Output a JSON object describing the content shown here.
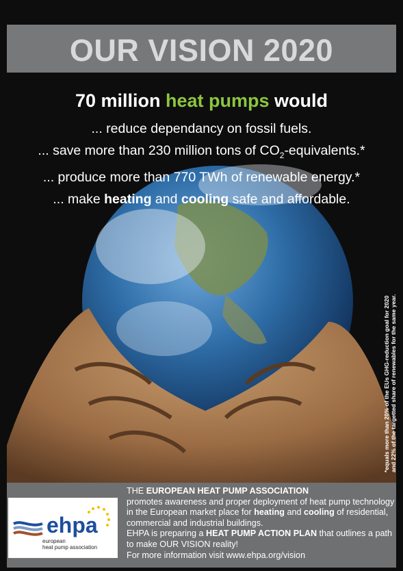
{
  "title": "OUR VISION 2020",
  "headline": [
    "70 million ",
    "heat pumps",
    " would"
  ],
  "claims": [
    [
      "... reduce dependancy on fossil fuels."
    ],
    [
      "... save more than 230 million tons of CO",
      "2",
      "-equivalents.*"
    ],
    [
      "... produce more than 770 TWh of renewable energy.*"
    ],
    [
      "... make ",
      "heating",
      " and ",
      "cooling",
      " safe and affordable."
    ]
  ],
  "footnote": [
    "*equals more than 20% of the EUs GHG-reduction goal for 2020",
    "and 22% of the targetted share of renewables for the same year."
  ],
  "logo": {
    "name": "ehpa",
    "tagline": [
      "european",
      "heat pump association"
    ]
  },
  "about": [
    [
      "THE ",
      "EUROPEAN HEAT PUMP ASSOCIATION"
    ],
    [
      "promotes awareness and proper deployment of heat pump technology in the European market place for ",
      "heating",
      " and ",
      "cooling",
      " of residential, commercial and industrial buildings."
    ],
    [
      "EHPA is preparing a ",
      "HEAT PUMP ACTION PLAN",
      " that outlines a path to make OUR VISION reality!"
    ],
    [
      "For more information visit www.ehpa.org/vision"
    ]
  ]
}
